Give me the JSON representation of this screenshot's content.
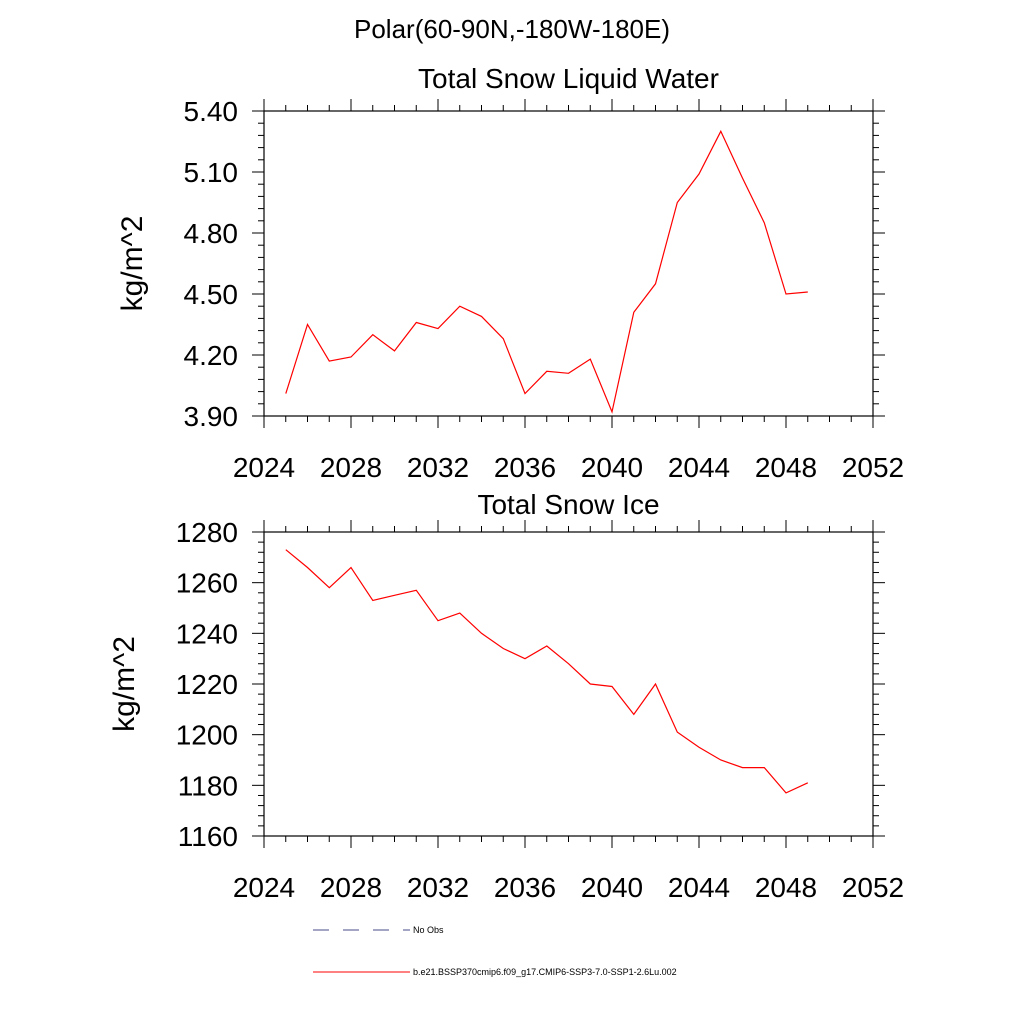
{
  "figure": {
    "suptitle": "Polar(60-90N,-180W-180E)",
    "line_color": "#ff0000",
    "obs_color": "#4a4a8a",
    "legend": {
      "obs_label": "No Obs",
      "model_label": "b.e21.BSSP370cmip6.f09_g17.CMIP6-SSP3-7.0-SSP1-2.6Lu.002"
    }
  },
  "chart_data": [
    {
      "type": "line",
      "title": "Total Snow Liquid Water",
      "xlabel": "",
      "ylabel": "kg/m^2",
      "xlim": [
        2024,
        2052
      ],
      "ylim": [
        3.9,
        5.4
      ],
      "xticks": [
        2024,
        2028,
        2032,
        2036,
        2040,
        2044,
        2048,
        2052
      ],
      "yticks": [
        "3.90",
        "4.20",
        "4.50",
        "4.80",
        "5.10",
        "5.40"
      ],
      "grid": false,
      "series": [
        {
          "x": [
            2025,
            2026,
            2027,
            2028,
            2029,
            2030,
            2031,
            2032,
            2033,
            2034,
            2035,
            2036,
            2037,
            2038,
            2039,
            2040,
            2041,
            2042,
            2043,
            2044,
            2045,
            2046,
            2047,
            2048,
            2049
          ],
          "values": [
            4.01,
            4.35,
            4.17,
            4.19,
            4.3,
            4.22,
            4.36,
            4.33,
            4.44,
            4.39,
            4.28,
            4.01,
            4.12,
            4.11,
            4.18,
            3.92,
            4.41,
            4.55,
            4.95,
            5.09,
            5.3,
            5.07,
            4.85,
            4.5,
            4.51
          ]
        }
      ]
    },
    {
      "type": "line",
      "title": "Total Snow Ice",
      "xlabel": "",
      "ylabel": "kg/m^2",
      "xlim": [
        2024,
        2052
      ],
      "ylim": [
        1160,
        1280
      ],
      "xticks": [
        2024,
        2028,
        2032,
        2036,
        2040,
        2044,
        2048,
        2052
      ],
      "yticks": [
        "1160",
        "1180",
        "1200",
        "1220",
        "1240",
        "1260",
        "1280"
      ],
      "grid": false,
      "series": [
        {
          "x": [
            2025,
            2026,
            2027,
            2028,
            2029,
            2030,
            2031,
            2032,
            2033,
            2034,
            2035,
            2036,
            2037,
            2038,
            2039,
            2040,
            2041,
            2042,
            2043,
            2044,
            2045,
            2046,
            2047,
            2048,
            2049
          ],
          "values": [
            1273,
            1266,
            1258,
            1266,
            1253,
            1255,
            1257,
            1245,
            1248,
            1240,
            1234,
            1230,
            1235,
            1228,
            1220,
            1219,
            1208,
            1220,
            1201,
            1195,
            1190,
            1187,
            1187,
            1177,
            1181
          ]
        }
      ]
    }
  ]
}
